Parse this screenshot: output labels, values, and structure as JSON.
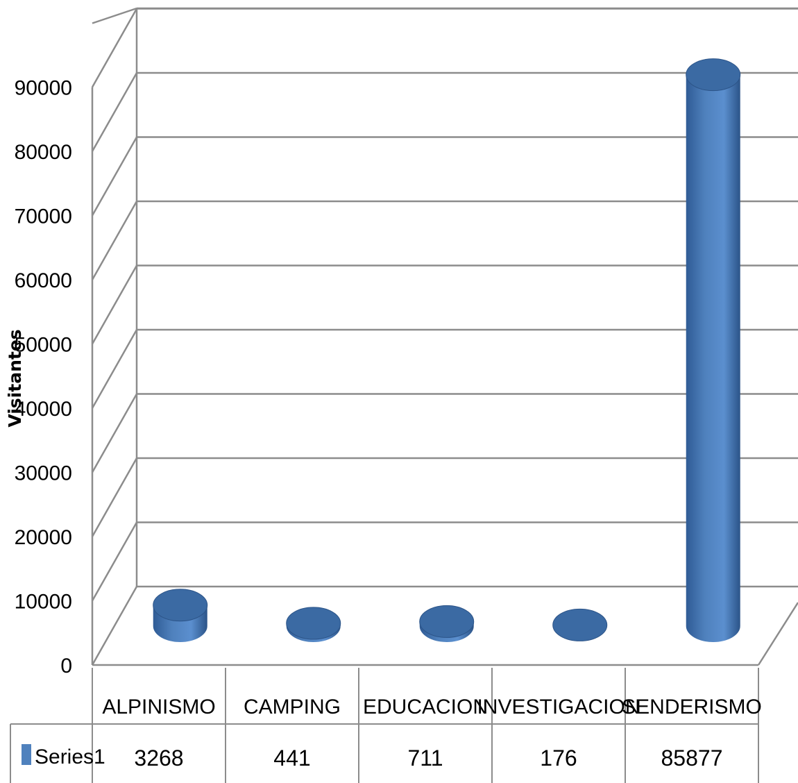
{
  "chart_data": {
    "type": "bar",
    "style": "3d-cylinder",
    "ylabel": "Visitantes",
    "xlabel": "",
    "ylim": [
      0,
      90000
    ],
    "yticks": [
      0,
      10000,
      20000,
      30000,
      40000,
      50000,
      60000,
      70000,
      80000,
      90000
    ],
    "grid": true,
    "categories": [
      "ALPINISMO",
      "CAMPING",
      "EDUCACION",
      "INVESTIGACION",
      "SENDERISMO"
    ],
    "series": [
      {
        "name": "Series1",
        "values": [
          3268,
          441,
          711,
          176,
          85877
        ],
        "color": "#4f81bd"
      }
    ],
    "data_table": true
  }
}
